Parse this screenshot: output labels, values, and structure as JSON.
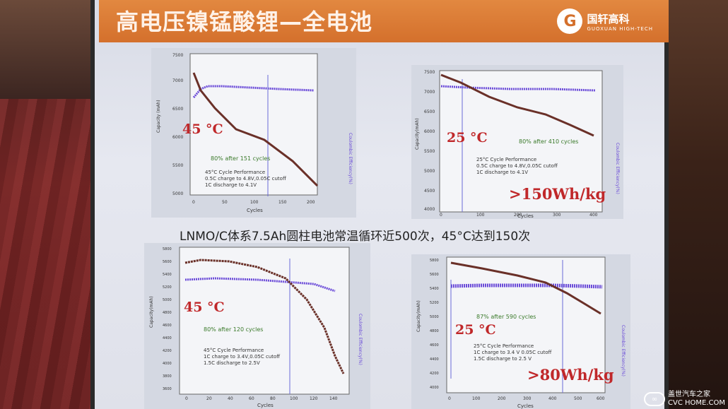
{
  "slide": {
    "title": "高电压镍锰酸锂—全电池",
    "logo_cn": "国轩高科",
    "logo_en": "GUOXUAN HIGH-TECH",
    "caption": "LNMO/C体系7.5Ah圆柱电池常温循环近500次，45°C达到150次"
  },
  "watermark": {
    "cn": "盖世汽车之家",
    "en": "CVC HOME.COM"
  },
  "charts": [
    {
      "temp": "45 °C",
      "retention": "80% after 151 cycles",
      "notes": [
        "45°C Cycle Performance",
        "0.5C charge to 4.8V,0.05C cutoff",
        "1C discharge to 4.1V"
      ],
      "xlabel": "Cycles",
      "ylabel": "Capacity (mAh)",
      "y2label": "Coulombic Efficiency(%)",
      "yticks": [
        "7500",
        "7000",
        "6500",
        "6000",
        "5500",
        "5000"
      ],
      "xticks": [
        "0",
        "50",
        "100",
        "150",
        "200"
      ]
    },
    {
      "temp": "25 °C",
      "retention": "80% after 410 cycles",
      "notes": [
        "25°C Cycle Performance",
        "0.5C charge to 4.8V,0.05C cutoff",
        "1C discharge to 4.1V"
      ],
      "badge": ">150Wh/kg",
      "xlabel": "Cycles",
      "ylabel": "Capacity(mAh)",
      "y2label": "Coulombic Efficiency(%)",
      "yticks": [
        "7500",
        "7000",
        "6500",
        "6000",
        "5500",
        "5000",
        "4500",
        "4000"
      ],
      "xticks": [
        "0",
        "100",
        "200",
        "300",
        "400"
      ]
    },
    {
      "temp": "45 °C",
      "retention": "80% after 120 cycles",
      "notes": [
        "45°C Cycle Performance",
        "1C charge to 3.4V,0.05C cutoff",
        "1.5C discharge to 2.5V"
      ],
      "xlabel": "Cycles",
      "ylabel": "Capacity(mAh)",
      "y2label": "Coulombic Efficiency(%)",
      "yticks": [
        "5800",
        "5600",
        "5400",
        "5200",
        "5000",
        "4800",
        "4600",
        "4400",
        "4200",
        "4000",
        "3800",
        "3600"
      ],
      "xticks": [
        "0",
        "20",
        "40",
        "60",
        "80",
        "100",
        "120",
        "140"
      ]
    },
    {
      "temp": "25 °C",
      "retention": "87% after 590 cycles",
      "notes": [
        "25°C Cycle Performance",
        "1C charge to 3.4 V 0.05C cutoff",
        "1.5C discharge to 2.5 V"
      ],
      "badge": ">80Wh/kg",
      "xlabel": "Cycles",
      "ylabel": "Capacity(mAh)",
      "y2label": "Coulombic Efficiency(%)",
      "yticks": [
        "5800",
        "5600",
        "5400",
        "5200",
        "5000",
        "4800",
        "4600",
        "4400",
        "4200",
        "4000"
      ],
      "xticks": [
        "0",
        "100",
        "200",
        "300",
        "400",
        "500",
        "600"
      ]
    }
  ]
}
